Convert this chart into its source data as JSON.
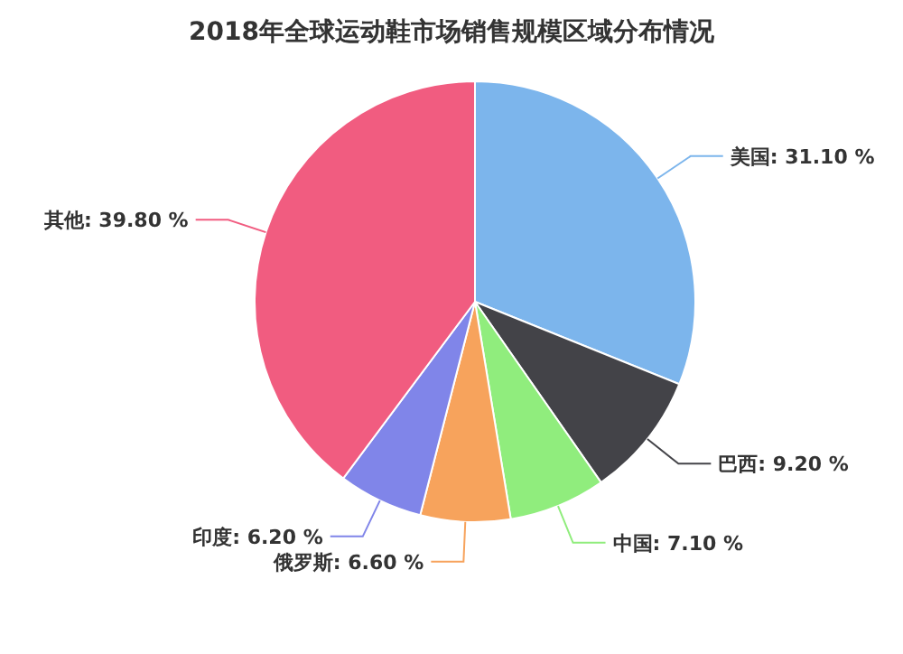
{
  "chart_data": {
    "type": "pie",
    "title": "2018年全球运动鞋市场销售规模区域分布情况",
    "categories": [
      "美国",
      "巴西",
      "中国",
      "俄罗斯",
      "印度",
      "其他"
    ],
    "values": [
      31.1,
      9.2,
      7.1,
      6.6,
      6.2,
      39.8
    ],
    "value_labels": [
      "31.10 %",
      "9.20 %",
      "7.10 %",
      "6.60 %",
      "6.20 %",
      "39.80 %"
    ],
    "colors": [
      "#7cb5ec",
      "#434348",
      "#90ed7d",
      "#f7a35c",
      "#8085e9",
      "#f15c80"
    ]
  }
}
